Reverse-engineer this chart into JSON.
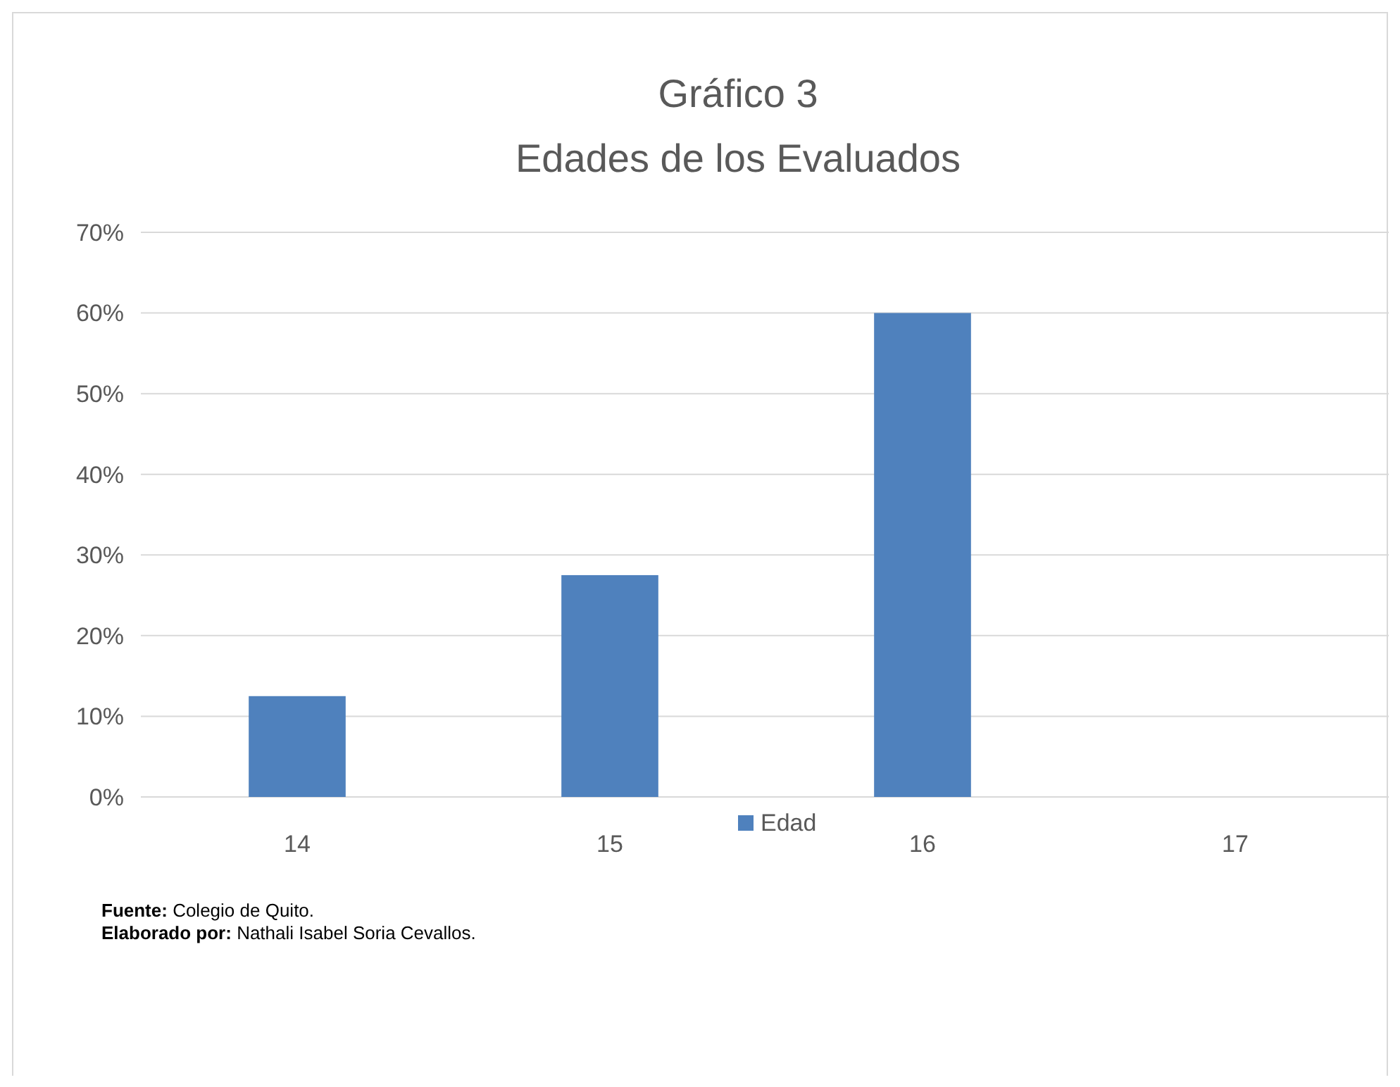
{
  "chart_data": {
    "type": "bar",
    "title": "Gráfico 3",
    "subtitle": "Edades de los Evaluados",
    "categories": [
      "14",
      "15",
      "16",
      "17"
    ],
    "series": [
      {
        "name": "Edad",
        "color": "#4f81bd",
        "values": [
          12.5,
          27.5,
          60,
          0
        ]
      }
    ],
    "ylim": [
      0,
      70
    ],
    "yticks": [
      {
        "value": 0,
        "label": "0%"
      },
      {
        "value": 10,
        "label": "10%"
      },
      {
        "value": 20,
        "label": "20%"
      },
      {
        "value": 30,
        "label": "30%"
      },
      {
        "value": 40,
        "label": "40%"
      },
      {
        "value": 50,
        "label": "50%"
      },
      {
        "value": 60,
        "label": "60%"
      },
      {
        "value": 70,
        "label": "70%"
      }
    ],
    "grid": "y",
    "legend": "bottom",
    "annotations": [
      "Fuente: Colegio de Quito.",
      "Elaborado por: Nathali Isabel Soria Cevallos."
    ]
  }
}
